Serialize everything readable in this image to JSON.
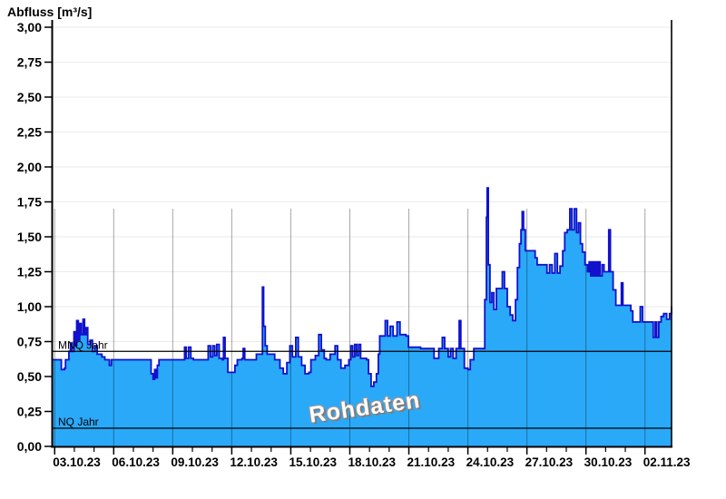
{
  "title": "Abfluss [m³/s]",
  "watermark": "Rohdaten",
  "colors": {
    "background": "#ffffff",
    "area_fill": "#2AA9F8",
    "series_line": "#1111CC",
    "grid_horizontal": "#EAEAEA",
    "grid_vertical": "rgba(0,0,0,0.35)",
    "axis": "#000000",
    "reference_line": "#000000",
    "text": "#000000"
  },
  "chart_data": {
    "type": "area",
    "title": "Abfluss [m³/s]",
    "ylabel": "Abfluss [m³/s]",
    "xlabel": "",
    "grid": "horizontal light gray every 0.25; vertical dark gray every 3 days (lower region only)",
    "legend_position": "none",
    "y_axis": {
      "min": 0.0,
      "max": 3.0,
      "tick_step": 0.25,
      "tick_labels": [
        "0,00",
        "0,25",
        "0,50",
        "0,75",
        "1,00",
        "1,25",
        "1,50",
        "1,75",
        "2,00",
        "2,25",
        "2,50",
        "2,75",
        "3,00"
      ]
    },
    "x_axis": {
      "tick_labels": [
        "03.10.23",
        "06.10.23",
        "09.10.23",
        "12.10.23",
        "15.10.23",
        "18.10.23",
        "21.10.23",
        "24.10.23",
        "27.10.23",
        "30.10.23",
        "02.11.23"
      ],
      "tick_spacing_days": 3,
      "minor_tick_days": 1,
      "t_start_days": -0.15,
      "t_end_days": 31.35
    },
    "reference_lines": [
      {
        "label": "MNQ Jahr",
        "value": 0.68
      },
      {
        "label": "NQ Jahr",
        "value": 0.13
      }
    ],
    "series": [
      {
        "name": "Rohdaten",
        "unit": "m³/s",
        "interpolation": "step-after",
        "points": [
          [
            -0.15,
            0.62
          ],
          [
            0.3,
            0.62
          ],
          [
            0.34,
            0.55
          ],
          [
            0.5,
            0.56
          ],
          [
            0.55,
            0.62
          ],
          [
            0.66,
            0.62
          ],
          [
            0.72,
            0.68
          ],
          [
            0.8,
            0.74
          ],
          [
            0.88,
            0.68
          ],
          [
            0.98,
            0.82
          ],
          [
            1.05,
            0.72
          ],
          [
            1.12,
            0.9
          ],
          [
            1.2,
            0.76
          ],
          [
            1.27,
            0.88
          ],
          [
            1.35,
            0.8
          ],
          [
            1.44,
            0.91
          ],
          [
            1.52,
            0.8
          ],
          [
            1.6,
            0.85
          ],
          [
            1.68,
            0.73
          ],
          [
            1.8,
            0.76
          ],
          [
            1.92,
            0.68
          ],
          [
            2.04,
            0.72
          ],
          [
            2.16,
            0.66
          ],
          [
            2.4,
            0.64
          ],
          [
            2.55,
            0.62
          ],
          [
            2.72,
            0.62
          ],
          [
            2.78,
            0.58
          ],
          [
            2.88,
            0.62
          ],
          [
            3.6,
            0.62
          ],
          [
            4.78,
            0.62
          ],
          [
            4.9,
            0.52
          ],
          [
            5.0,
            0.48
          ],
          [
            5.08,
            0.55
          ],
          [
            5.14,
            0.49
          ],
          [
            5.22,
            0.58
          ],
          [
            5.3,
            0.62
          ],
          [
            6.5,
            0.62
          ],
          [
            6.6,
            0.71
          ],
          [
            6.68,
            0.63
          ],
          [
            6.8,
            0.71
          ],
          [
            6.92,
            0.63
          ],
          [
            7.05,
            0.62
          ],
          [
            7.68,
            0.62
          ],
          [
            7.8,
            0.72
          ],
          [
            7.92,
            0.64
          ],
          [
            8.03,
            0.72
          ],
          [
            8.14,
            0.65
          ],
          [
            8.24,
            0.73
          ],
          [
            8.36,
            0.63
          ],
          [
            8.52,
            0.62
          ],
          [
            8.58,
            0.78
          ],
          [
            8.66,
            0.63
          ],
          [
            8.8,
            0.53
          ],
          [
            9.05,
            0.53
          ],
          [
            9.16,
            0.58
          ],
          [
            9.28,
            0.62
          ],
          [
            9.52,
            0.63
          ],
          [
            9.58,
            0.7
          ],
          [
            9.66,
            0.62
          ],
          [
            10.18,
            0.62
          ],
          [
            10.25,
            0.66
          ],
          [
            10.48,
            0.66
          ],
          [
            10.56,
            1.14
          ],
          [
            10.62,
            0.86
          ],
          [
            10.7,
            0.72
          ],
          [
            10.8,
            0.66
          ],
          [
            11.05,
            0.66
          ],
          [
            11.18,
            0.62
          ],
          [
            11.45,
            0.56
          ],
          [
            11.62,
            0.52
          ],
          [
            11.8,
            0.6
          ],
          [
            11.95,
            0.72
          ],
          [
            12.08,
            0.64
          ],
          [
            12.25,
            0.78
          ],
          [
            12.38,
            0.64
          ],
          [
            12.55,
            0.58
          ],
          [
            12.72,
            0.52
          ],
          [
            12.92,
            0.53
          ],
          [
            13.02,
            0.62
          ],
          [
            13.25,
            0.65
          ],
          [
            13.42,
            0.8
          ],
          [
            13.55,
            0.69
          ],
          [
            13.7,
            0.63
          ],
          [
            13.8,
            0.62
          ],
          [
            14.0,
            0.66
          ],
          [
            14.25,
            0.72
          ],
          [
            14.38,
            0.62
          ],
          [
            14.55,
            0.56
          ],
          [
            14.75,
            0.58
          ],
          [
            14.95,
            0.62
          ],
          [
            15.05,
            0.72
          ],
          [
            15.15,
            0.64
          ],
          [
            15.25,
            0.73
          ],
          [
            15.35,
            0.65
          ],
          [
            15.45,
            0.73
          ],
          [
            15.55,
            0.63
          ],
          [
            15.85,
            0.62
          ],
          [
            15.95,
            0.52
          ],
          [
            16.08,
            0.43
          ],
          [
            16.22,
            0.46
          ],
          [
            16.35,
            0.52
          ],
          [
            16.45,
            0.66
          ],
          [
            16.52,
            0.79
          ],
          [
            16.7,
            0.79
          ],
          [
            16.8,
            0.9
          ],
          [
            16.92,
            0.79
          ],
          [
            17.05,
            0.86
          ],
          [
            17.2,
            0.79
          ],
          [
            17.4,
            0.89
          ],
          [
            17.55,
            0.8
          ],
          [
            17.85,
            0.79
          ],
          [
            17.98,
            0.71
          ],
          [
            18.6,
            0.7
          ],
          [
            19.2,
            0.7
          ],
          [
            19.28,
            0.63
          ],
          [
            19.42,
            0.63
          ],
          [
            19.52,
            0.7
          ],
          [
            19.7,
            0.78
          ],
          [
            19.82,
            0.7
          ],
          [
            20.0,
            0.64
          ],
          [
            20.12,
            0.7
          ],
          [
            20.25,
            0.63
          ],
          [
            20.4,
            0.7
          ],
          [
            20.56,
            0.9
          ],
          [
            20.64,
            0.7
          ],
          [
            20.82,
            0.56
          ],
          [
            21.0,
            0.55
          ],
          [
            21.12,
            0.62
          ],
          [
            21.3,
            0.7
          ],
          [
            21.72,
            0.7
          ],
          [
            21.86,
            1.05
          ],
          [
            21.94,
            1.64
          ],
          [
            21.98,
            1.85
          ],
          [
            22.04,
            1.3
          ],
          [
            22.12,
            1.03
          ],
          [
            22.22,
            1.1
          ],
          [
            22.32,
            0.98
          ],
          [
            22.45,
            1.13
          ],
          [
            22.65,
            1.13
          ],
          [
            22.75,
            1.25
          ],
          [
            22.86,
            1.13
          ],
          [
            23.0,
            1.0
          ],
          [
            23.15,
            0.94
          ],
          [
            23.28,
            0.9
          ],
          [
            23.42,
            1.05
          ],
          [
            23.52,
            1.28
          ],
          [
            23.62,
            1.45
          ],
          [
            23.7,
            1.55
          ],
          [
            23.76,
            1.68
          ],
          [
            23.83,
            1.55
          ],
          [
            23.92,
            1.4
          ],
          [
            24.25,
            1.4
          ],
          [
            24.42,
            1.35
          ],
          [
            24.52,
            1.3
          ],
          [
            24.9,
            1.3
          ],
          [
            25.02,
            1.24
          ],
          [
            25.15,
            1.3
          ],
          [
            25.28,
            1.24
          ],
          [
            25.42,
            1.38
          ],
          [
            25.55,
            1.24
          ],
          [
            25.68,
            1.29
          ],
          [
            25.82,
            1.4
          ],
          [
            25.92,
            1.53
          ],
          [
            26.05,
            1.55
          ],
          [
            26.18,
            1.7
          ],
          [
            26.28,
            1.55
          ],
          [
            26.4,
            1.7
          ],
          [
            26.52,
            1.53
          ],
          [
            26.62,
            1.6
          ],
          [
            26.72,
            1.45
          ],
          [
            26.82,
            1.39
          ],
          [
            26.95,
            1.3
          ],
          [
            27.08,
            1.25
          ],
          [
            27.16,
            1.32
          ],
          [
            27.24,
            1.22
          ],
          [
            27.32,
            1.32
          ],
          [
            27.4,
            1.22
          ],
          [
            27.48,
            1.32
          ],
          [
            27.56,
            1.22
          ],
          [
            27.64,
            1.32
          ],
          [
            27.72,
            1.22
          ],
          [
            27.82,
            1.3
          ],
          [
            27.92,
            1.25
          ],
          [
            28.08,
            1.25
          ],
          [
            28.16,
            1.55
          ],
          [
            28.24,
            1.25
          ],
          [
            28.38,
            1.12
          ],
          [
            28.52,
            1.01
          ],
          [
            28.72,
            1.01
          ],
          [
            28.8,
            1.17
          ],
          [
            28.88,
            1.01
          ],
          [
            29.15,
            1.01
          ],
          [
            29.28,
            0.97
          ],
          [
            29.38,
            0.89
          ],
          [
            29.65,
            0.89
          ],
          [
            29.76,
            1.0
          ],
          [
            29.88,
            0.89
          ],
          [
            30.3,
            0.89
          ],
          [
            30.42,
            0.78
          ],
          [
            30.52,
            0.89
          ],
          [
            30.6,
            0.78
          ],
          [
            30.7,
            0.89
          ],
          [
            30.82,
            0.93
          ],
          [
            30.95,
            0.95
          ],
          [
            31.1,
            0.91
          ],
          [
            31.25,
            0.95
          ],
          [
            31.35,
            1.0
          ]
        ]
      }
    ]
  }
}
